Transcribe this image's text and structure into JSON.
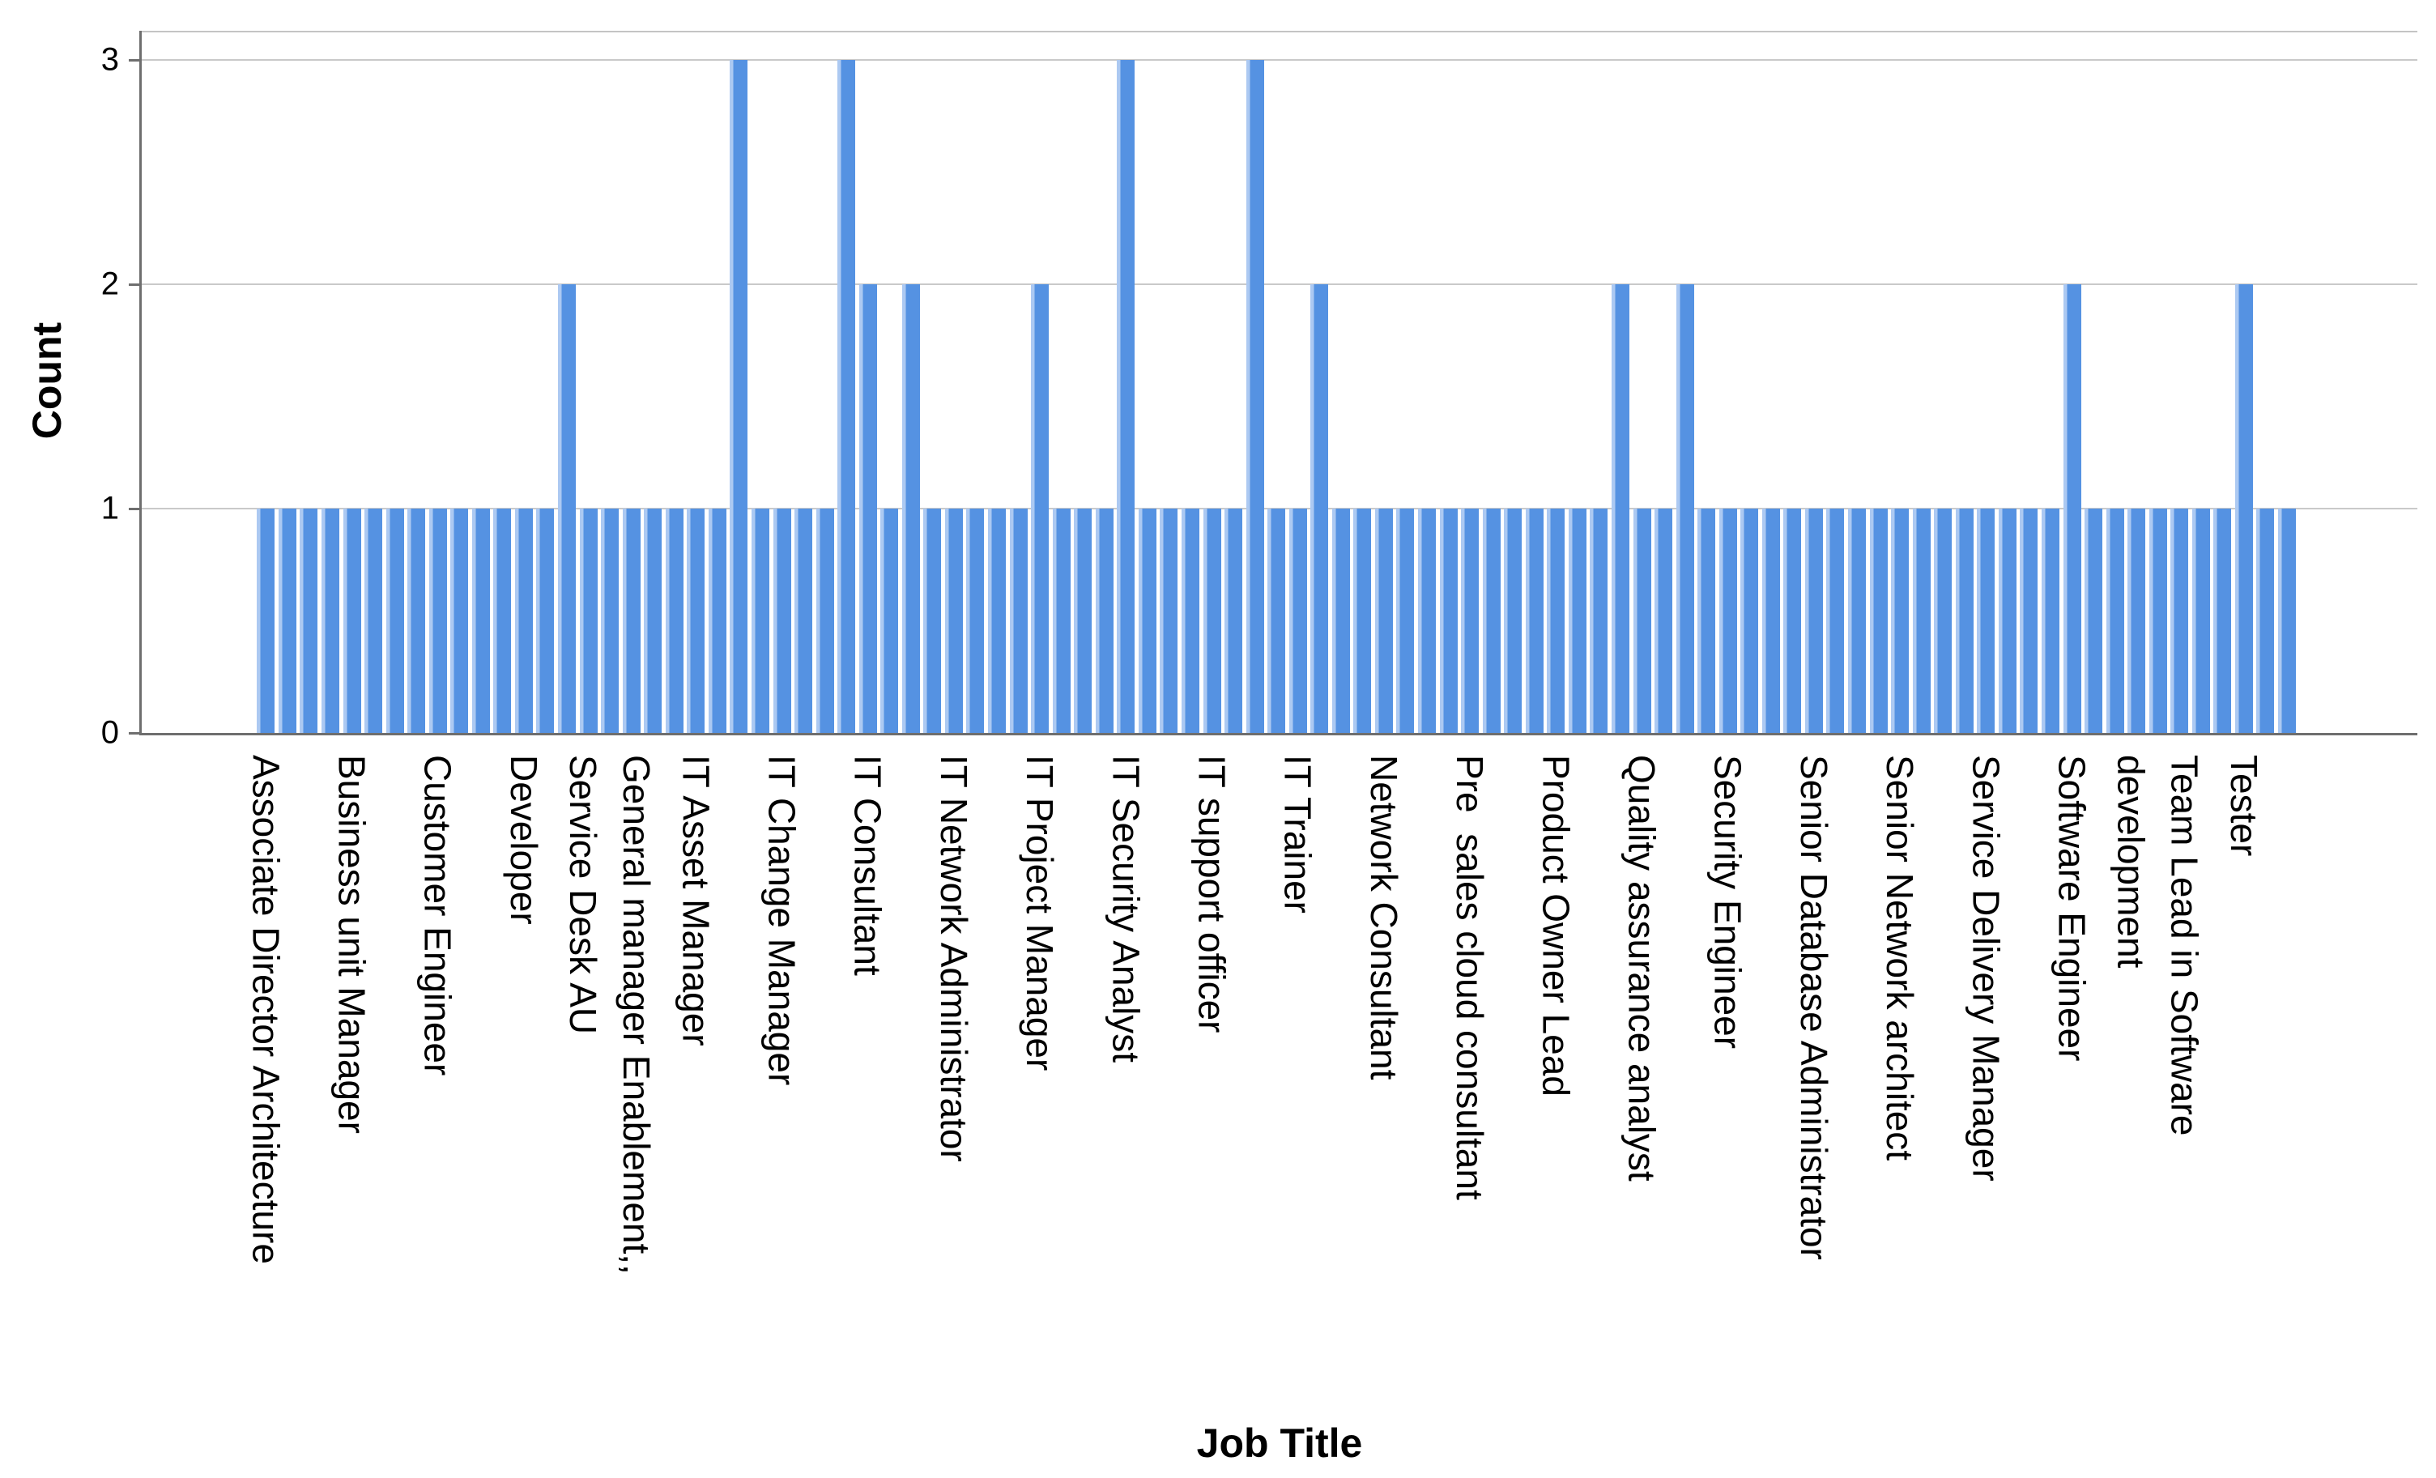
{
  "chart_data": {
    "type": "bar",
    "title": "",
    "xlabel": "Job Title",
    "ylabel": "Count",
    "ylim": [
      0,
      3
    ],
    "yticks": [
      0,
      1,
      2,
      3
    ],
    "grid": "horizontal gridlines at y=1,2,3, light gray, behind bars",
    "legend": "none",
    "n_categories": 95,
    "tick_label_policy": "only every 4th category tick is labeled (24 labels total); long labels wrap to two vertical lines",
    "counts": [
      1,
      1,
      1,
      1,
      1,
      1,
      1,
      1,
      1,
      1,
      1,
      1,
      1,
      1,
      2,
      1,
      1,
      1,
      1,
      1,
      1,
      1,
      3,
      1,
      1,
      1,
      1,
      3,
      2,
      1,
      2,
      1,
      1,
      1,
      1,
      1,
      2,
      1,
      1,
      1,
      3,
      1,
      1,
      1,
      1,
      1,
      3,
      1,
      1,
      2,
      1,
      1,
      1,
      1,
      1,
      1,
      1,
      1,
      1,
      1,
      1,
      1,
      1,
      2,
      1,
      1,
      2,
      1,
      1,
      1,
      1,
      1,
      1,
      1,
      1,
      1,
      1,
      1,
      1,
      1,
      1,
      1,
      1,
      1,
      2,
      1,
      1,
      1,
      1,
      1,
      1,
      1,
      2,
      1,
      1
    ],
    "labeled_ticks": [
      {
        "bar_index": 0,
        "lines": [
          "Associate Director Architecture"
        ]
      },
      {
        "bar_index": 4,
        "lines": [
          "Business unit Manager"
        ]
      },
      {
        "bar_index": 8,
        "lines": [
          "Customer Engineer"
        ]
      },
      {
        "bar_index": 12,
        "lines": [
          "Developer"
        ]
      },
      {
        "bar_index": 16,
        "lines": [
          "General manager Enablement,,",
          "Service Desk AU"
        ]
      },
      {
        "bar_index": 20,
        "lines": [
          "IT Asset Manager"
        ]
      },
      {
        "bar_index": 24,
        "lines": [
          "IT Change Manager"
        ]
      },
      {
        "bar_index": 28,
        "lines": [
          "IT Consultant"
        ]
      },
      {
        "bar_index": 32,
        "lines": [
          "IT Network Administrator"
        ]
      },
      {
        "bar_index": 36,
        "lines": [
          "IT Project Manager"
        ]
      },
      {
        "bar_index": 40,
        "lines": [
          "IT Security Analyst"
        ]
      },
      {
        "bar_index": 44,
        "lines": [
          "IT support officer"
        ]
      },
      {
        "bar_index": 48,
        "lines": [
          "IT Trainer"
        ]
      },
      {
        "bar_index": 52,
        "lines": [
          "Network Consultant"
        ]
      },
      {
        "bar_index": 56,
        "lines": [
          "Pre  sales cloud consultant"
        ]
      },
      {
        "bar_index": 60,
        "lines": [
          "Product Owner Lead"
        ]
      },
      {
        "bar_index": 64,
        "lines": [
          "Quality assurance analyst"
        ]
      },
      {
        "bar_index": 68,
        "lines": [
          "Security Engineer"
        ]
      },
      {
        "bar_index": 72,
        "lines": [
          "Senior Database Administrator"
        ]
      },
      {
        "bar_index": 76,
        "lines": [
          "Senior Network architect"
        ]
      },
      {
        "bar_index": 80,
        "lines": [
          "Service Delivery Manager"
        ]
      },
      {
        "bar_index": 84,
        "lines": [
          "Software Engineer"
        ]
      },
      {
        "bar_index": 88,
        "lines": [
          "Team Lead in Software",
          "development"
        ]
      },
      {
        "bar_index": 92,
        "lines": [
          "Tester"
        ]
      }
    ],
    "colors": {
      "bar_fill": "#5592E2",
      "bar_left_highlight": "#ACC9F2",
      "gridline": "#C9C9C9",
      "axis_line": "#6E6E6E",
      "top_frame": "#C4C4C4",
      "text": "#000000",
      "background": "#FFFFFF"
    }
  }
}
